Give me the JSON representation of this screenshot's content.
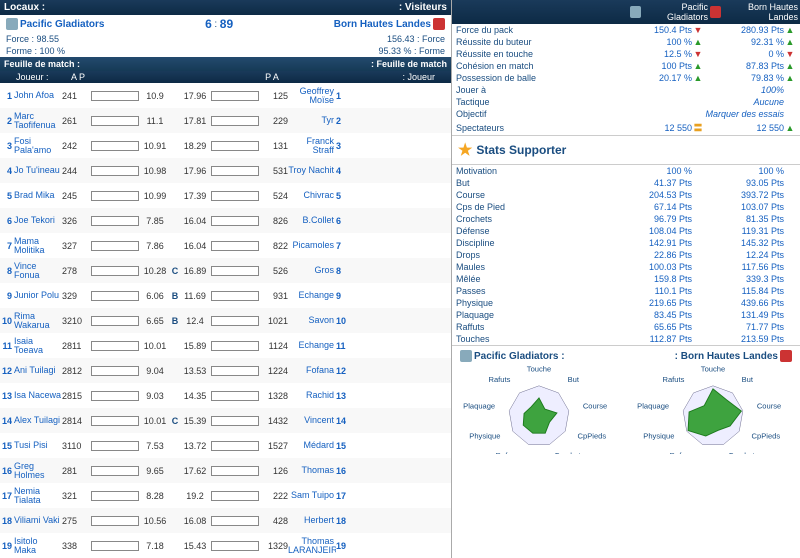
{
  "left": {
    "hdr_local": "Locaux :",
    "hdr_visit": ": Visiteurs",
    "team1": "Pacific Gladiators",
    "team2": "Born Hautes Landes",
    "score1": "6",
    "score2": "89",
    "force_lbl_l": "Force : 98.55",
    "force_lbl_r": "156.43 : Force",
    "forme_l": "Forme : 100 %",
    "forme_r": "95.33 % : Forme",
    "feuille_l": "Feuille de match :",
    "feuille_r": ": Feuille de match",
    "ph_joueur_l": "Joueur :",
    "ph_joueur_r": ": Joueur",
    "ph_a": "A",
    "ph_p": "P",
    "players": [
      {
        "n": "1",
        "name": "John Afoa",
        "min": "241",
        "b1": 70,
        "s1": "10.9",
        "m": "",
        "s2": "17.96",
        "b2": 55,
        "min2": "125",
        "name2": "Geoffrey Moïse",
        "n2": "1"
      },
      {
        "n": "2",
        "name": "Marc Taofifenua",
        "min": "261",
        "b1": 68,
        "s1": "11.1",
        "m": "",
        "s2": "17.81",
        "b2": 55,
        "min2": "229",
        "name2": "Tyr",
        "n2": "2"
      },
      {
        "n": "3",
        "name": "Fosi Pala'amo",
        "min": "242",
        "b1": 70,
        "s1": "10.91",
        "m": "",
        "s2": "18.29",
        "b2": 52,
        "min2": "131",
        "name2": "Franck Straff",
        "n2": "3"
      },
      {
        "n": "4",
        "name": "Jo Tu'ineau",
        "min": "244",
        "b1": 68,
        "s1": "10.98",
        "m": "",
        "s2": "17.96",
        "b2": 55,
        "min2": "531",
        "name2": "Troy Nachit",
        "n2": "4"
      },
      {
        "n": "5",
        "name": "Brad Mika",
        "min": "245",
        "b1": 68,
        "s1": "10.99",
        "m": "",
        "s2": "17.39",
        "b2": 60,
        "min2": "524",
        "name2": "Chivrac",
        "n2": "5"
      },
      {
        "n": "6",
        "name": "Joe Tekori",
        "min": "326",
        "b1": 55,
        "s1": "7.85",
        "m": "",
        "s2": "16.04",
        "b2": 68,
        "min2": "826",
        "name2": "B.Collet",
        "n2": "6"
      },
      {
        "n": "7",
        "name": "Mama Molitika",
        "min": "327",
        "b1": 55,
        "s1": "7.86",
        "m": "",
        "s2": "16.04",
        "b2": 68,
        "min2": "822",
        "name2": "Picamoles",
        "n2": "7"
      },
      {
        "n": "8",
        "name": "Vince Fonua",
        "min": "278",
        "b1": 65,
        "s1": "10.28",
        "m": "C",
        "s2": "16.89",
        "b2": 62,
        "min2": "526",
        "name2": "Gros",
        "n2": "8"
      },
      {
        "n": "9",
        "name": "Junior Polu",
        "min": "329",
        "b1": 40,
        "s1": "6.06",
        "m": "B",
        "s2": "11.69",
        "b2": 95,
        "min2": "931",
        "name2": "Echange",
        "n2": "9"
      },
      {
        "n": "10",
        "name": "Rima Wakarua",
        "min": "3210",
        "b1": 42,
        "s1": "6.65",
        "m": "B",
        "s2": "12.4",
        "b2": 95,
        "min2": "1021",
        "name2": "Savon",
        "n2": "10"
      },
      {
        "n": "11",
        "name": "Isaia Toeava",
        "min": "2811",
        "b1": 65,
        "s1": "10.01",
        "m": "",
        "s2": "15.89",
        "b2": 68,
        "min2": "1124",
        "name2": "Echange",
        "n2": "11"
      },
      {
        "n": "12",
        "name": "Ani Tuilagi",
        "min": "2812",
        "b1": 58,
        "s1": "9.04",
        "m": "",
        "s2": "13.53",
        "b2": 80,
        "min2": "1224",
        "name2": "Fofana",
        "n2": "12"
      },
      {
        "n": "13",
        "name": "Isa Nacewa",
        "min": "2815",
        "b1": 58,
        "s1": "9.03",
        "m": "",
        "s2": "14.35",
        "b2": 75,
        "min2": "1328",
        "name2": "Rachid",
        "n2": "13"
      },
      {
        "n": "14",
        "name": "Alex Tuilagi",
        "min": "2814",
        "b1": 65,
        "s1": "10.01",
        "m": "C",
        "s2": "15.39",
        "b2": 70,
        "min2": "1432",
        "name2": "Vincent",
        "n2": "14"
      },
      {
        "n": "15",
        "name": "Tusi Pisi",
        "min": "3110",
        "b1": 50,
        "s1": "7.53",
        "m": "",
        "s2": "13.72",
        "b2": 80,
        "min2": "1527",
        "name2": "Médard",
        "n2": "15"
      },
      {
        "n": "16",
        "name": "Greg Holmes",
        "min": "281",
        "b1": 62,
        "s1": "9.65",
        "m": "",
        "s2": "17.62",
        "b2": 58,
        "min2": "126",
        "name2": "Thomas",
        "n2": "16"
      },
      {
        "n": "17",
        "name": "Nemia Tialata",
        "min": "321",
        "b1": 55,
        "s1": "8.28",
        "m": "",
        "s2": "19.2",
        "b2": 48,
        "min2": "222",
        "name2": "Sam Tuipo",
        "n2": "17"
      },
      {
        "n": "18",
        "name": "Viliami Vaki",
        "min": "275",
        "b1": 68,
        "s1": "10.56",
        "m": "",
        "s2": "16.08",
        "b2": 68,
        "min2": "428",
        "name2": "Herbert",
        "n2": "18"
      },
      {
        "n": "19",
        "name": "Isitolo Maka",
        "min": "338",
        "b1": 48,
        "s1": "7.18",
        "m": "",
        "s2": "15.43",
        "b2": 70,
        "min2": "1329",
        "name2": "Thomas LARANJEIRA",
        "n2": "19"
      }
    ]
  },
  "right": {
    "team1": "Pacific Gladiators",
    "team2": "Born Hautes Landes",
    "cmp": [
      {
        "l": "Force du pack",
        "v1": "150.4 Pts",
        "a1": "down",
        "v2": "280.93 Pts",
        "a2": "up"
      },
      {
        "l": "Réussite du buteur",
        "v1": "100 %",
        "a1": "up",
        "v2": "92.31 %",
        "a2": "up"
      },
      {
        "l": "Réussite en touche",
        "v1": "12.5 %",
        "a1": "down",
        "v2": "0 %",
        "a2": "down"
      },
      {
        "l": "Cohésion en match",
        "v1": "100 Pts",
        "a1": "up",
        "v2": "87.83 Pts",
        "a2": "up"
      },
      {
        "l": "Possession de balle",
        "v1": "20.17 %",
        "a1": "up",
        "v2": "79.83 %",
        "a2": "up"
      },
      {
        "l": "Jouer à",
        "v1": "",
        "a1": "",
        "v2": "100%",
        "a2": "",
        "italic": true
      },
      {
        "l": "Tactique",
        "v1": "",
        "a1": "",
        "v2": "Aucune",
        "a2": "",
        "italic": true
      },
      {
        "l": "Objectif",
        "v1": "",
        "a1": "",
        "v2": "Marquer des essais",
        "a2": "",
        "italic": true
      },
      {
        "l": "Spectateurs",
        "v1": "12 550",
        "a1": "eq",
        "v2": "12 550",
        "a2": "up"
      }
    ],
    "stats_title": "Stats Supporter",
    "stats": [
      {
        "l": "Motivation",
        "v1": "100 %",
        "v2": "100 %"
      },
      {
        "l": "But",
        "v1": "41.37 Pts",
        "v2": "93.05 Pts"
      },
      {
        "l": "Course",
        "v1": "204.53 Pts",
        "v2": "393.72 Pts"
      },
      {
        "l": "Cps de Pied",
        "v1": "67.14 Pts",
        "v2": "103.07 Pts"
      },
      {
        "l": "Crochets",
        "v1": "96.79 Pts",
        "v2": "81.35 Pts"
      },
      {
        "l": "Défense",
        "v1": "108.04 Pts",
        "v2": "119.31 Pts"
      },
      {
        "l": "Discipline",
        "v1": "142.91 Pts",
        "v2": "145.32 Pts"
      },
      {
        "l": "Drops",
        "v1": "22.86 Pts",
        "v2": "12.24 Pts"
      },
      {
        "l": "Maules",
        "v1": "100.03 Pts",
        "v2": "117.56 Pts"
      },
      {
        "l": "Mêlée",
        "v1": "159.8 Pts",
        "v2": "339.3 Pts"
      },
      {
        "l": "Passes",
        "v1": "110.1 Pts",
        "v2": "115.84 Pts"
      },
      {
        "l": "Physique",
        "v1": "219.65 Pts",
        "v2": "439.66 Pts"
      },
      {
        "l": "Plaquage",
        "v1": "83.45 Pts",
        "v2": "131.49 Pts"
      },
      {
        "l": "Raffuts",
        "v1": "65.65 Pts",
        "v2": "71.77 Pts"
      },
      {
        "l": "Touches",
        "v1": "112.87 Pts",
        "v2": "213.59 Pts"
      }
    ],
    "radar_labels": [
      "Touche",
      "But",
      "Course",
      "CpPieds",
      "Crochet",
      "Defense",
      "Physique",
      "Plaquage",
      "Rafuts"
    ],
    "radar1_title": "Pacific Gladiators :",
    "radar2_title": ": Born Hautes Landes",
    "radar1": [
      0.6,
      0.3,
      0.6,
      0.4,
      0.6,
      0.6,
      0.6,
      0.5,
      0.4
    ],
    "radar2": [
      0.9,
      0.7,
      0.95,
      0.65,
      0.5,
      0.7,
      0.95,
      0.8,
      0.45
    ]
  }
}
